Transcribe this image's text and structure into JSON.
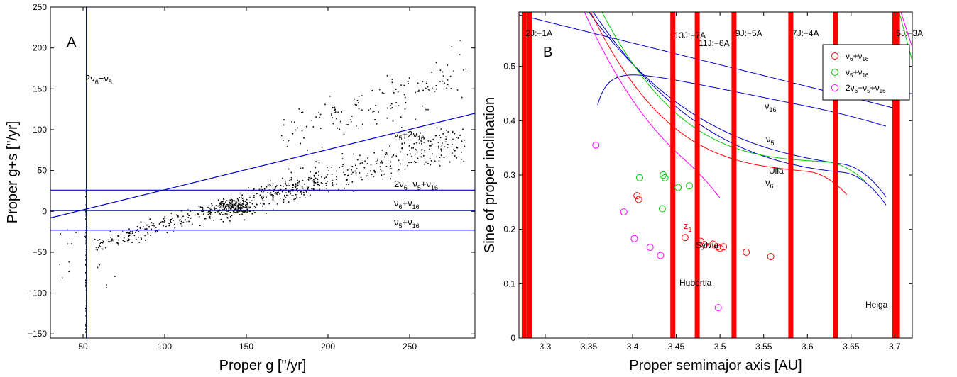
{
  "chart_data": [
    {
      "type": "scatter",
      "panel_label": "A",
      "xlabel": "Proper g [\"/yr]",
      "ylabel": "Proper g+s [\"/yr]",
      "xlim": [
        30,
        290
      ],
      "ylim": [
        -155,
        250
      ],
      "xticks": [
        50,
        100,
        150,
        200,
        250
      ],
      "yticks": [
        -150,
        -100,
        -50,
        0,
        50,
        100,
        150,
        200,
        250
      ],
      "grid": false,
      "points_color": "#000000",
      "resonance_lines": [
        {
          "label": "2ν6−ν5",
          "kind": "vertical",
          "x": 52,
          "color": "#0000cc"
        },
        {
          "label": "2ν6−ν5+ν16",
          "kind": "horizontal",
          "y": 26,
          "color": "#0000cc"
        },
        {
          "label": "ν6+ν16",
          "kind": "horizontal",
          "y": 1,
          "color": "#0000cc"
        },
        {
          "label": "ν5+ν16",
          "kind": "horizontal",
          "y": -23,
          "color": "#0000cc"
        },
        {
          "label": "ν5+2ν16",
          "kind": "slanted",
          "x": [
            30,
            290
          ],
          "y": [
            -8,
            120
          ],
          "color": "#0000cc"
        }
      ],
      "point_clusters": [
        {
          "kind": "band",
          "x": [
            58,
            285
          ],
          "center_a": -40,
          "center_b": 0.58,
          "spread": 13,
          "n": 620
        },
        {
          "kind": "blob",
          "cx": 142,
          "cy": 5,
          "rx": 7,
          "ry": 7,
          "n": 170
        },
        {
          "kind": "blob",
          "cx": 175,
          "cy": 28,
          "rx": 10,
          "ry": 10,
          "n": 60
        },
        {
          "kind": "upper_band",
          "x": [
            170,
            282
          ],
          "center_a": 10,
          "center_b": 0.72,
          "spread": 18,
          "n": 110
        },
        {
          "kind": "column",
          "x": 52,
          "y": [
            -150,
            25
          ],
          "n": 75
        },
        {
          "kind": "scatter_low",
          "x": [
            35,
            70
          ],
          "y": [
            -95,
            -20
          ],
          "n": 16
        }
      ]
    },
    {
      "type": "scatter",
      "panel_label": "B",
      "xlabel": "Proper semimajor axis [AU]",
      "ylabel": "Sine of proper inclination",
      "xlim": [
        3.27,
        3.72
      ],
      "ylim": [
        0,
        0.6
      ],
      "xticks": [
        3.3,
        3.35,
        3.4,
        3.45,
        3.5,
        3.55,
        3.6,
        3.65,
        3.7
      ],
      "yticks": [
        0,
        0.1,
        0.2,
        0.3,
        0.4,
        0.5
      ],
      "grid": false,
      "legend_position": "top-right",
      "series": [
        {
          "name": "ν6+ν16",
          "color": "#ff0000",
          "x": [
            3.405,
            3.407,
            3.46,
            3.478,
            3.482,
            3.492,
            3.497,
            3.5,
            3.504,
            3.53,
            3.558
          ],
          "y": [
            0.262,
            0.255,
            0.185,
            0.178,
            0.172,
            0.173,
            0.168,
            0.165,
            0.168,
            0.158,
            0.15
          ]
        },
        {
          "name": "ν5+ν16",
          "color": "#00cc00",
          "x": [
            3.408,
            3.435,
            3.437,
            3.452,
            3.465,
            3.434
          ],
          "y": [
            0.295,
            0.3,
            0.295,
            0.277,
            0.28,
            0.238
          ]
        },
        {
          "name": "2ν6−ν5+ν16",
          "color": "#ff00ff",
          "x": [
            3.358,
            3.39,
            3.402,
            3.42,
            3.432,
            3.498
          ],
          "y": [
            0.355,
            0.232,
            0.183,
            0.167,
            0.152,
            0.056
          ]
        }
      ],
      "resonances": [
        {
          "label": "2J:−1A",
          "a": [
            3.276,
            3.282
          ]
        },
        {
          "label": "13J:−7A",
          "a": [
            3.446
          ]
        },
        {
          "label": "11J:−6A",
          "a": [
            3.474
          ]
        },
        {
          "label": "9J:−5A",
          "a": [
            3.516
          ]
        },
        {
          "label": "7J:−4A",
          "a": [
            3.581
          ]
        },
        {
          "label": "",
          "a": [
            3.632
          ]
        },
        {
          "label": "5J:−3A",
          "a": [
            3.7,
            3.703
          ]
        }
      ],
      "curve_labels": [
        "ν16",
        "ν5",
        "ν6"
      ],
      "annotations": [
        "z1",
        "Ulla",
        "Sylvia",
        "Hubertia",
        "Helga"
      ],
      "colors": {
        "resonance": "#ff0000",
        "nu16": "#0000cc",
        "nu5": "#0000cc",
        "nu6": "#ff0000",
        "nu5_green": "#00cc00",
        "magenta": "#ff00ff"
      }
    }
  ]
}
